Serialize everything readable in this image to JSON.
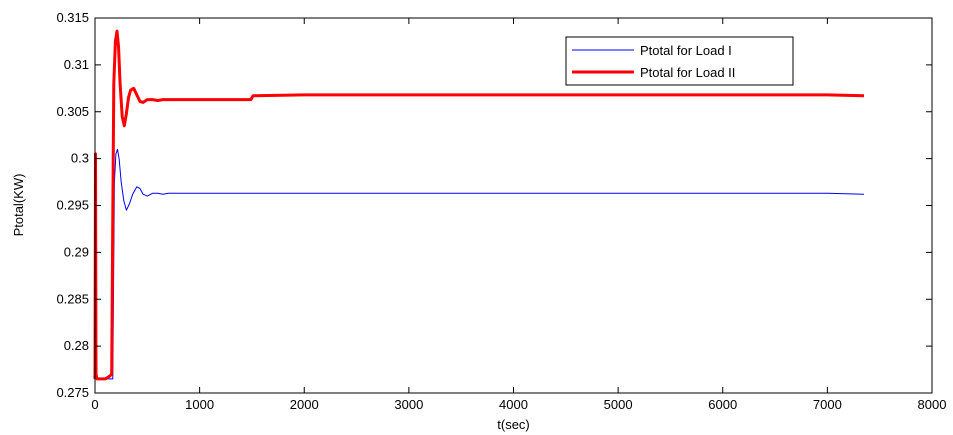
{
  "chart_data": {
    "type": "line",
    "title": "",
    "xlabel": "t(sec)",
    "ylabel": "Ptotal(KW)",
    "xlim": [
      0,
      8000
    ],
    "ylim": [
      0.275,
      0.315
    ],
    "xticks": [
      0,
      1000,
      2000,
      3000,
      4000,
      5000,
      6000,
      7000,
      8000
    ],
    "yticks": [
      0.275,
      0.28,
      0.285,
      0.29,
      0.295,
      0.3,
      0.305,
      0.31,
      0.315
    ],
    "xtick_labels": [
      "0",
      "1000",
      "2000",
      "3000",
      "4000",
      "5000",
      "6000",
      "7000",
      "8000"
    ],
    "ytick_labels": [
      "0.275",
      "0.28",
      "0.285",
      "0.29",
      "0.295",
      "0.3",
      "0.305",
      "0.31",
      "0.315"
    ],
    "grid": false,
    "legend_position": "top-right",
    "series": [
      {
        "name": "Ptotal for Load I",
        "color": "#0000ff",
        "x": [
          0,
          10,
          30,
          60,
          100,
          140,
          160,
          170,
          185,
          200,
          215,
          230,
          250,
          275,
          300,
          330,
          360,
          400,
          430,
          460,
          500,
          550,
          600,
          650,
          700,
          1000,
          1500,
          2000,
          3000,
          4000,
          5000,
          6000,
          7000,
          7350
        ],
        "y": [
          0.2765,
          0.2765,
          0.2765,
          0.2765,
          0.2765,
          0.2765,
          0.2765,
          0.2765,
          0.2975,
          0.3005,
          0.301,
          0.3,
          0.2975,
          0.2955,
          0.2945,
          0.2952,
          0.2962,
          0.297,
          0.2968,
          0.2962,
          0.296,
          0.2963,
          0.2963,
          0.2962,
          0.2963,
          0.2963,
          0.2963,
          0.2963,
          0.2963,
          0.2963,
          0.2963,
          0.2963,
          0.2963,
          0.2962
        ]
      },
      {
        "name": "Ptotal for Load II",
        "color": "#ff0000",
        "x": [
          0,
          5,
          10,
          20,
          30,
          60,
          100,
          140,
          160,
          170,
          180,
          195,
          210,
          225,
          240,
          260,
          280,
          300,
          320,
          340,
          370,
          400,
          430,
          460,
          500,
          550,
          600,
          650,
          700,
          1000,
          1490,
          1510,
          2000,
          3000,
          4000,
          5000,
          6000,
          7000,
          7350
        ],
        "y": [
          0.2765,
          0.3005,
          0.277,
          0.2765,
          0.2765,
          0.2765,
          0.2765,
          0.2768,
          0.277,
          0.294,
          0.308,
          0.3125,
          0.3136,
          0.312,
          0.308,
          0.3045,
          0.3035,
          0.3048,
          0.3065,
          0.3073,
          0.3075,
          0.3068,
          0.3061,
          0.306,
          0.3063,
          0.3063,
          0.3062,
          0.3063,
          0.3063,
          0.3063,
          0.3063,
          0.3067,
          0.3068,
          0.3068,
          0.3068,
          0.3068,
          0.3068,
          0.3068,
          0.3067
        ]
      }
    ]
  }
}
